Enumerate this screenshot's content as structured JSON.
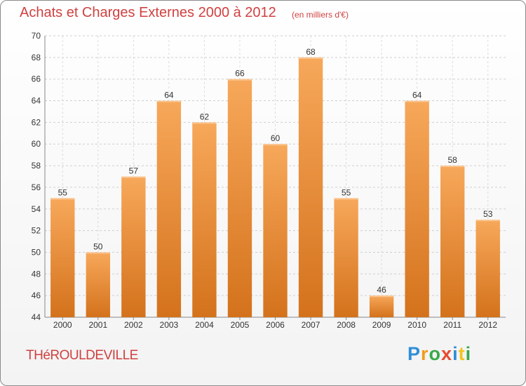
{
  "header": {
    "title": "Achats et Charges Externes 2000 à 2012",
    "subtitle": "(en milliers d'€)"
  },
  "footer": {
    "town": "THéROULDEVILLE",
    "logo_letters": [
      {
        "ch": "P",
        "color": "#2f8fd6"
      },
      {
        "ch": "r",
        "color": "#f29a1f"
      },
      {
        "ch": "o",
        "color": "#3aa84a"
      },
      {
        "ch": "x",
        "color": "#e84a2f"
      },
      {
        "ch": "i",
        "color": "#2f8fd6"
      },
      {
        "ch": "t",
        "color": "#f2c31f"
      },
      {
        "ch": "i",
        "color": "#3aa84a"
      }
    ]
  },
  "chart_data": {
    "type": "bar",
    "categories": [
      "2000",
      "2001",
      "2002",
      "2003",
      "2004",
      "2005",
      "2006",
      "2007",
      "2008",
      "2009",
      "2010",
      "2011",
      "2012"
    ],
    "values": [
      55,
      50,
      57,
      64,
      62,
      66,
      60,
      68,
      55,
      46,
      64,
      58,
      53
    ],
    "title": "Achats et Charges Externes 2000 à 2012",
    "xlabel": "",
    "ylabel": "",
    "ylim": [
      44,
      70
    ],
    "yticks": [
      44,
      46,
      48,
      50,
      52,
      54,
      56,
      58,
      60,
      62,
      64,
      66,
      68,
      70
    ],
    "grid": true,
    "bar_color_top": "#f7a85a",
    "bar_color_bottom": "#d4721c"
  }
}
